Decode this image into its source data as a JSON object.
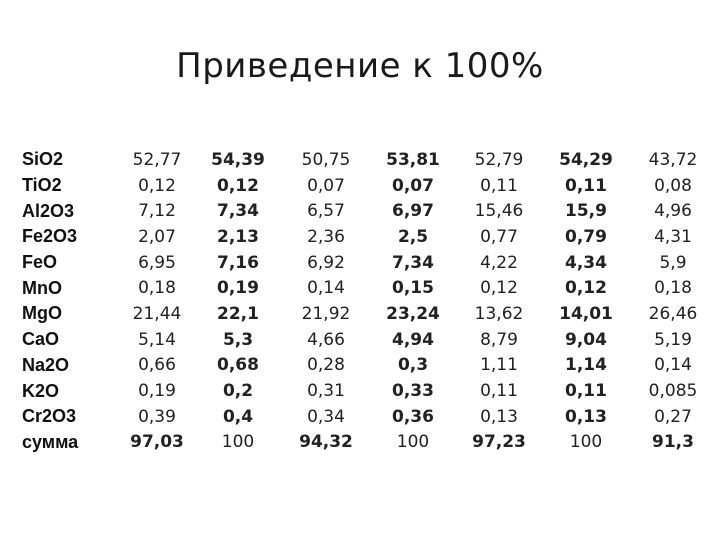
{
  "title": "Приведение к 100%",
  "colors": {
    "normalized": "#1f5f8b",
    "sum_raw": "#cc1f1f",
    "text": "#222222"
  },
  "rows": [
    {
      "label": "SiO2",
      "values": [
        "52,77",
        "54,39",
        "50,75",
        "53,81",
        "52,79",
        "54,29",
        "43,72"
      ]
    },
    {
      "label": "TiO2",
      "values": [
        "0,12",
        "0,12",
        "0,07",
        "0,07",
        "0,11",
        "0,11",
        "0,08"
      ]
    },
    {
      "label": "Al2O3",
      "values": [
        "7,12",
        "7,34",
        "6,57",
        "6,97",
        "15,46",
        "15,9",
        "4,96"
      ]
    },
    {
      "label": "Fe2O3",
      "values": [
        "2,07",
        "2,13",
        "2,36",
        "2,5",
        "0,77",
        "0,79",
        "4,31"
      ]
    },
    {
      "label": "FeO",
      "values": [
        "6,95",
        "7,16",
        "6,92",
        "7,34",
        "4,22",
        "4,34",
        "5,9"
      ]
    },
    {
      "label": "MnO",
      "values": [
        "0,18",
        "0,19",
        "0,14",
        "0,15",
        "0,12",
        "0,12",
        "0,18"
      ]
    },
    {
      "label": "MgO",
      "values": [
        "21,44",
        "22,1",
        "21,92",
        "23,24",
        "13,62",
        "14,01",
        "26,46"
      ]
    },
    {
      "label": "CaO",
      "values": [
        "5,14",
        "5,3",
        "4,66",
        "4,94",
        "8,79",
        "9,04",
        "5,19"
      ]
    },
    {
      "label": "Na2O",
      "values": [
        "0,66",
        "0,68",
        "0,28",
        "0,3",
        "1,11",
        "1,14",
        "0,14"
      ]
    },
    {
      "label": "K2O",
      "values": [
        "0,19",
        "0,2",
        "0,31",
        "0,33",
        "0,11",
        "0,11",
        "0,085"
      ]
    },
    {
      "label": "Cr2O3",
      "values": [
        "0,39",
        "0,4",
        "0,34",
        "0,36",
        "0,13",
        "0,13",
        "0,27"
      ]
    },
    {
      "label": "сумма",
      "values": [
        "97,03",
        "100",
        "94,32",
        "100",
        "97,23",
        "100",
        "91,3"
      ]
    }
  ]
}
